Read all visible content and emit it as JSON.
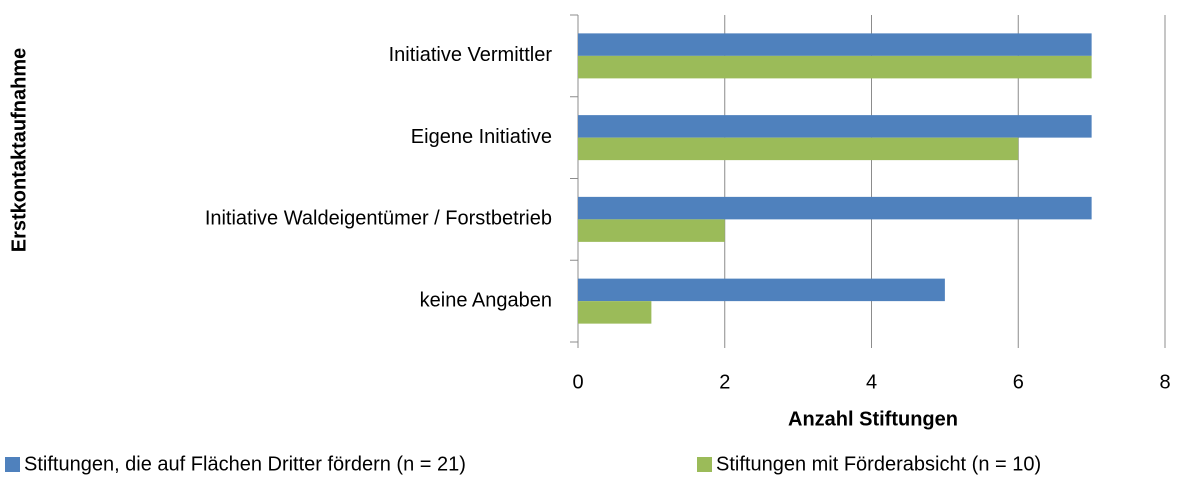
{
  "chart_data": {
    "type": "hbar",
    "xlabel": "Anzahl Stiftungen",
    "ylabel": "Erstkontaktaufnahme",
    "categories": [
      "Initiative Vermittler",
      "Eigene Initiative",
      "Initiative Waldeigentümer / Forstbetrieb",
      "keine Angaben"
    ],
    "series": [
      {
        "name": "Stiftungen, die auf Flächen Dritter fördern (n = 21)",
        "color": "#4f81bd",
        "values": [
          7,
          7,
          7,
          5
        ]
      },
      {
        "name": "Stiftungen mit Förderabsicht (n = 10)",
        "color": "#9bbb59",
        "values": [
          7,
          6,
          2,
          1
        ]
      }
    ],
    "xlim": [
      0,
      8
    ],
    "xticks": [
      0,
      2,
      4,
      6,
      8
    ],
    "grid": true,
    "legend": "bottom"
  }
}
